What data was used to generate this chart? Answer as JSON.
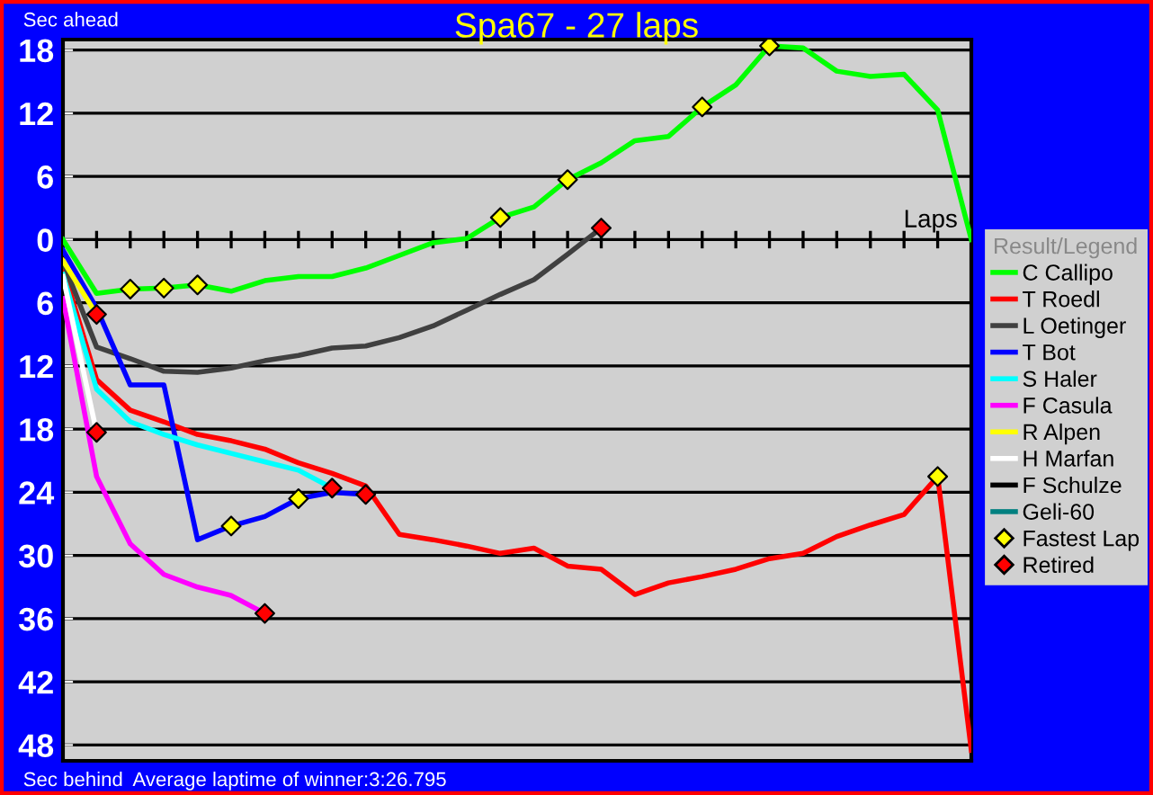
{
  "chart_data": {
    "type": "line",
    "title": "Spa67 - 27 laps",
    "xlabel": "Laps",
    "legend_title": "Result/Legend",
    "annotations": [
      "Sec ahead",
      "Sec behind",
      "Average laptime of winner:3:26.795"
    ],
    "categories": [
      null,
      null,
      null,
      null,
      null,
      null,
      null,
      null,
      null,
      null,
      null,
      null,
      null,
      null,
      null,
      null,
      null,
      null,
      null,
      null,
      null,
      null,
      null,
      null,
      null,
      null,
      null,
      null
    ],
    "ylim": [
      -49.5,
      19
    ],
    "yticks": [
      {
        "value": 18,
        "label": "18"
      },
      {
        "value": 12,
        "label": "12"
      },
      {
        "value": 6,
        "label": "6"
      },
      {
        "value": 0,
        "label": "0"
      },
      {
        "value": -6,
        "label": "6"
      },
      {
        "value": -12,
        "label": "12"
      },
      {
        "value": -18,
        "label": "18"
      },
      {
        "value": -24,
        "label": "24"
      },
      {
        "value": -30,
        "label": "30"
      },
      {
        "value": -36,
        "label": "36"
      },
      {
        "value": -42,
        "label": "42"
      },
      {
        "value": -48,
        "label": "48"
      }
    ],
    "tick_labels": "y",
    "grid": "y",
    "legend": "right",
    "marker": "none",
    "line_style": "solid",
    "series": [
      {
        "name": "C Callipo",
        "color": "#00ff00",
        "values": [
          0,
          -5.1,
          -4.7,
          -4.6,
          -4.3,
          -4.9,
          -3.9,
          -3.5,
          -3.5,
          -2.7,
          -1.5,
          -0.3,
          0.1,
          2.1,
          3.1,
          5.7,
          7.3,
          9.4,
          9.8,
          12.6,
          14.7,
          18.4,
          18.2,
          16.0,
          15.5,
          15.7,
          12.3,
          0
        ]
      },
      {
        "name": "T Roedl",
        "color": "#ff0000",
        "values": [
          -2.7,
          -13.3,
          -16.2,
          -17.3,
          -18.5,
          -19.1,
          -19.9,
          -21.2,
          -22.2,
          -23.4,
          -28.0,
          -28.5,
          -29.1,
          -29.8,
          -29.3,
          -31.0,
          -31.3,
          -33.7,
          -32.6,
          -32.0,
          -31.3,
          -30.3,
          -29.8,
          -28.2,
          -27.1,
          -26.1,
          -22.5,
          -48.5
        ]
      },
      {
        "name": "L Oetinger",
        "color": "#404040",
        "values": [
          -2.1,
          -10.2,
          -11.3,
          -12.5,
          -12.6,
          -12.2,
          -11.5,
          -11.0,
          -10.3,
          -10.1,
          -9.3,
          -8.2,
          -6.7,
          -5.2,
          -3.8,
          -1.4,
          1.1,
          null,
          null,
          null,
          null,
          null,
          null,
          null,
          null,
          null,
          null,
          null
        ]
      },
      {
        "name": "T Bot",
        "color": "#0000ff",
        "values": [
          -1.0,
          -6.5,
          -13.8,
          -13.8,
          -28.5,
          -27.2,
          -26.3,
          -24.6,
          -24.0,
          -24.2,
          null,
          null,
          null,
          null,
          null,
          null,
          null,
          null,
          null,
          null,
          null,
          null,
          null,
          null,
          null,
          null,
          null,
          null
        ]
      },
      {
        "name": "S Haler",
        "color": "#00ffff",
        "values": [
          -3.3,
          -14.2,
          -17.3,
          -18.5,
          -19.5,
          -20.3,
          -21.1,
          -21.9,
          -23.6,
          null,
          null,
          null,
          null,
          null,
          null,
          null,
          null,
          null,
          null,
          null,
          null,
          null,
          null,
          null,
          null,
          null,
          null,
          null
        ]
      },
      {
        "name": "F Casula",
        "color": "#ff00ff",
        "values": [
          -5.6,
          -22.5,
          -28.9,
          -31.8,
          -33.0,
          -33.8,
          -35.5,
          null,
          null,
          null,
          null,
          null,
          null,
          null,
          null,
          null,
          null,
          null,
          null,
          null,
          null,
          null,
          null,
          null,
          null,
          null,
          null,
          null
        ]
      },
      {
        "name": "R Alpen",
        "color": "#ffff00",
        "values": [
          -2.0,
          -7.1,
          null,
          null,
          null,
          null,
          null,
          null,
          null,
          null,
          null,
          null,
          null,
          null,
          null,
          null,
          null,
          null,
          null,
          null,
          null,
          null,
          null,
          null,
          null,
          null,
          null,
          null
        ]
      },
      {
        "name": "H Marfan",
        "color": "#ffffff",
        "values": [
          -3.5,
          -18.3,
          null,
          null,
          null,
          null,
          null,
          null,
          null,
          null,
          null,
          null,
          null,
          null,
          null,
          null,
          null,
          null,
          null,
          null,
          null,
          null,
          null,
          null,
          null,
          null,
          null,
          null
        ]
      },
      {
        "name": "F Schulze",
        "color": "#000000",
        "values": [
          null,
          null,
          null,
          null,
          null,
          null,
          null,
          null,
          null,
          null,
          null,
          null,
          null,
          null,
          null,
          null,
          null,
          null,
          null,
          null,
          null,
          null,
          null,
          null,
          null,
          null,
          null,
          null
        ]
      },
      {
        "name": "Geli-60",
        "color": "#008080",
        "values": [
          null,
          null,
          null,
          null,
          null,
          null,
          null,
          null,
          null,
          null,
          null,
          null,
          null,
          null,
          null,
          null,
          null,
          null,
          null,
          null,
          null,
          null,
          null,
          null,
          null,
          null,
          null,
          null
        ]
      },
      {
        "name": "Fastest Lap",
        "type": "scatter",
        "marker": "diamond",
        "color": "#ffff00",
        "values": [
          null,
          null,
          -4.7,
          -4.6,
          -4.3,
          -27.2,
          null,
          -24.6,
          null,
          null,
          null,
          null,
          null,
          2.1,
          null,
          5.7,
          null,
          null,
          null,
          12.6,
          null,
          18.4,
          null,
          null,
          null,
          null,
          -22.5,
          null
        ]
      },
      {
        "name": "Retired",
        "type": "scatter",
        "marker": "diamond",
        "color": "#ff0000",
        "values": [
          null,
          -7.1,
          null,
          null,
          null,
          null,
          -35.5,
          null,
          -23.6,
          -24.2,
          null,
          null,
          null,
          null,
          null,
          null,
          1.1,
          null,
          null,
          null,
          null,
          null,
          null,
          null,
          null,
          null,
          null,
          null
        ]
      },
      {
        "type": "scatter",
        "marker": "diamond",
        "color": "#ff0000",
        "values": [
          null,
          -18.3,
          null,
          null,
          null,
          null,
          null,
          null,
          null,
          null,
          null,
          null,
          null,
          null,
          null,
          null,
          null,
          null,
          null,
          null,
          null,
          null,
          null,
          null,
          null,
          null,
          null,
          null
        ]
      }
    ]
  }
}
